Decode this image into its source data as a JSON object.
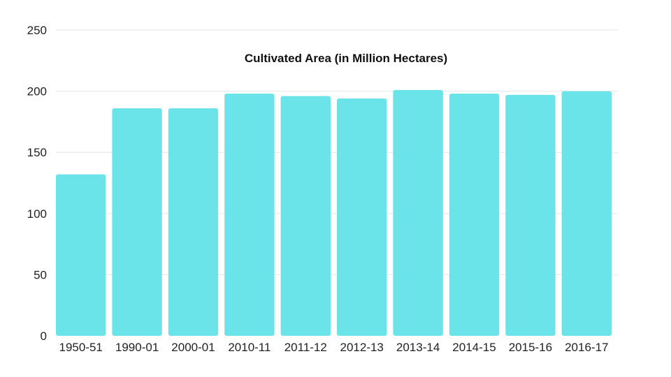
{
  "chart_data": {
    "type": "bar",
    "title": "Cultivated Area (in Million Hectares)",
    "xlabel": "",
    "ylabel": "",
    "categories": [
      "1950-51",
      "1990-01",
      "2000-01",
      "2010-11",
      "2011-12",
      "2012-13",
      "2013-14",
      "2014-15",
      "2015-16",
      "2016-17"
    ],
    "values": [
      132,
      186,
      186,
      198,
      196,
      194,
      201,
      198,
      197,
      200
    ],
    "ylim": [
      0,
      250
    ],
    "yticks": [
      0,
      50,
      100,
      150,
      200,
      250
    ],
    "grid": true,
    "legend": "none",
    "colors": {
      "bar": "#6ae4e8",
      "grid": "#e6e6e6"
    }
  }
}
